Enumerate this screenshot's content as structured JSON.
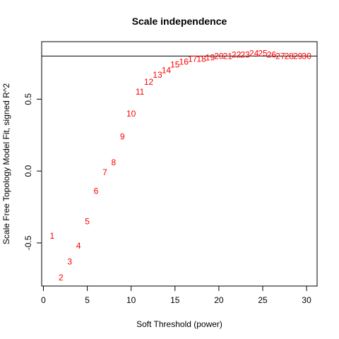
{
  "chart_data": {
    "type": "scatter",
    "title": "Scale independence",
    "xlabel": "Soft Threshold (power)",
    "ylabel": "Scale Free Topology Model Fit, signed R^2",
    "xlim": [
      -0.2,
      31.2
    ],
    "ylim": [
      -0.8,
      0.9
    ],
    "x_ticks": [
      0,
      5,
      10,
      15,
      20,
      25,
      30
    ],
    "y_ticks": [
      -0.5,
      0.0,
      0.5
    ],
    "y_tick_labels": [
      "-0.5",
      "0.0",
      "0.5"
    ],
    "grid": false,
    "marker_style": "text labels",
    "point_color": "#ff0000",
    "reference_line": {
      "y": 0.8,
      "color": "#000000"
    },
    "points": [
      {
        "x": 1,
        "y": -0.45,
        "label": "1"
      },
      {
        "x": 2,
        "y": -0.74,
        "label": "2"
      },
      {
        "x": 3,
        "y": -0.63,
        "label": "3"
      },
      {
        "x": 4,
        "y": -0.52,
        "label": "4"
      },
      {
        "x": 5,
        "y": -0.35,
        "label": "5"
      },
      {
        "x": 6,
        "y": -0.14,
        "label": "6"
      },
      {
        "x": 7,
        "y": -0.01,
        "label": "7"
      },
      {
        "x": 8,
        "y": 0.06,
        "label": "8"
      },
      {
        "x": 9,
        "y": 0.24,
        "label": "9"
      },
      {
        "x": 10,
        "y": 0.4,
        "label": "10"
      },
      {
        "x": 11,
        "y": 0.55,
        "label": "11"
      },
      {
        "x": 12,
        "y": 0.62,
        "label": "12"
      },
      {
        "x": 13,
        "y": 0.67,
        "label": "13"
      },
      {
        "x": 14,
        "y": 0.7,
        "label": "14"
      },
      {
        "x": 15,
        "y": 0.74,
        "label": "15"
      },
      {
        "x": 16,
        "y": 0.76,
        "label": "16"
      },
      {
        "x": 17,
        "y": 0.78,
        "label": "17"
      },
      {
        "x": 18,
        "y": 0.78,
        "label": "18"
      },
      {
        "x": 19,
        "y": 0.79,
        "label": "19"
      },
      {
        "x": 20,
        "y": 0.8,
        "label": "20"
      },
      {
        "x": 21,
        "y": 0.8,
        "label": "21"
      },
      {
        "x": 22,
        "y": 0.81,
        "label": "22"
      },
      {
        "x": 23,
        "y": 0.81,
        "label": "23"
      },
      {
        "x": 24,
        "y": 0.82,
        "label": "24"
      },
      {
        "x": 25,
        "y": 0.82,
        "label": "25"
      },
      {
        "x": 26,
        "y": 0.81,
        "label": "26"
      },
      {
        "x": 27,
        "y": 0.8,
        "label": "27"
      },
      {
        "x": 28,
        "y": 0.8,
        "label": "28"
      },
      {
        "x": 29,
        "y": 0.8,
        "label": "29"
      },
      {
        "x": 30,
        "y": 0.8,
        "label": "30"
      }
    ]
  }
}
